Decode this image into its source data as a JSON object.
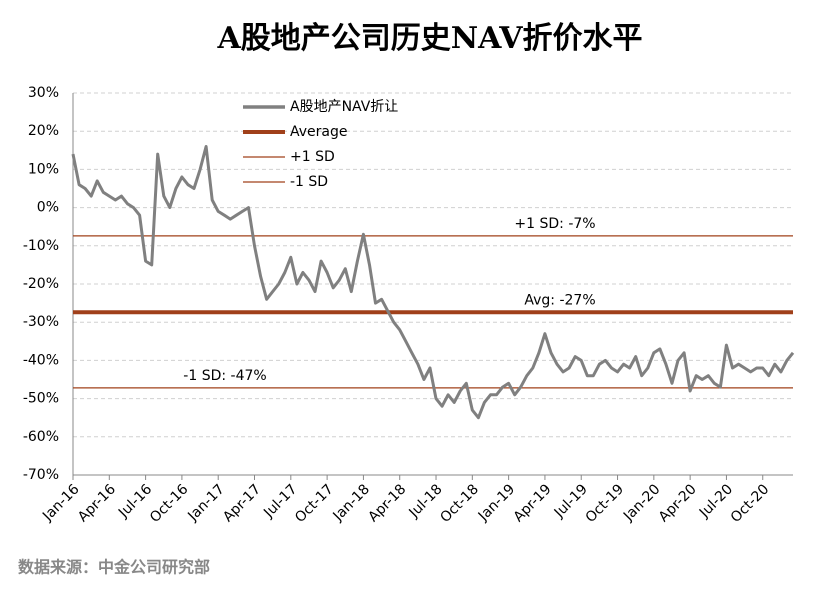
{
  "chart_data": {
    "type": "line",
    "title": "A股地产公司历史NAV折价水平",
    "source": "数据来源：中金公司研究部",
    "categories": [
      "Jan-16",
      null,
      null,
      null,
      null,
      null,
      "Apr-16",
      null,
      null,
      null,
      null,
      null,
      "Jul-16",
      null,
      null,
      null,
      null,
      null,
      "Oct-16",
      null,
      null,
      null,
      null,
      null,
      "Jan-17",
      null,
      null,
      null,
      null,
      null,
      "Apr-17",
      null,
      null,
      null,
      null,
      null,
      "Jul-17",
      null,
      null,
      null,
      null,
      null,
      "Oct-17",
      null,
      null,
      null,
      null,
      null,
      "Jan-18",
      null,
      null,
      null,
      null,
      null,
      "Apr-18",
      null,
      null,
      null,
      null,
      null,
      "Jul-18",
      null,
      null,
      null,
      null,
      null,
      "Oct-18",
      null,
      null,
      null,
      null,
      null,
      "Jan-19",
      null,
      null,
      null,
      null,
      null,
      "Apr-19",
      null,
      null,
      null,
      null,
      null,
      "Jul-19",
      null,
      null,
      null,
      null,
      null,
      "Oct-19",
      null,
      null,
      null,
      null,
      null,
      "Jan-20",
      null,
      null,
      null,
      null,
      null,
      "Apr-20",
      null,
      null,
      null,
      null,
      null,
      "Jul-20",
      null,
      null,
      null,
      null,
      null,
      "Oct-20",
      null,
      null,
      null,
      null,
      null
    ],
    "series": [
      {
        "name": "A股地产NAV折让",
        "color": "#808080",
        "values": [
          14,
          6,
          5,
          3,
          7,
          4,
          3,
          2,
          3,
          1,
          0,
          -2,
          -14,
          -15,
          14,
          3,
          0,
          5,
          8,
          6,
          5,
          10,
          16,
          2,
          -1,
          -2,
          -3,
          -2,
          -1,
          0,
          -10,
          -18,
          -24,
          -22,
          -20,
          -17,
          -13,
          -20,
          -17,
          -19,
          -22,
          -14,
          -17,
          -21,
          -19,
          -16,
          -22,
          -14,
          -7,
          -15,
          -25,
          -24,
          -27,
          -30,
          -32,
          -35,
          -38,
          -41,
          -45,
          -42,
          -50,
          -52,
          -49,
          -51,
          -48,
          -46,
          -53,
          -55,
          -51,
          -49,
          -49,
          -47,
          -46,
          -49,
          -47,
          -44,
          -42,
          -38,
          -33,
          -38,
          -41,
          -43,
          -42,
          -39,
          -40,
          -44,
          -44,
          -41,
          -40,
          -42,
          -43,
          -41,
          -42,
          -39,
          -44,
          -42,
          -38,
          -37,
          -41,
          -46,
          -40,
          -38,
          -48,
          -44,
          -45,
          -44,
          -46,
          -47,
          -36,
          -42,
          -41,
          -42,
          -43,
          -42,
          -42,
          -44,
          -41,
          -43,
          -40,
          -38
        ]
      }
    ],
    "reference_lines": [
      {
        "name": "Average",
        "value": -27.4,
        "label": "Avg: -27%",
        "color": "#a0401a",
        "width": 4
      },
      {
        "name": "+1 SD",
        "value": -7.4,
        "label": "+1 SD: -7%",
        "color": "#a0401a",
        "width": 1.2
      },
      {
        "name": "-1 SD",
        "value": -47.2,
        "label": "-1 SD: -47%",
        "color": "#a0401a",
        "width": 1.2
      }
    ],
    "ylim": [
      -70,
      30
    ],
    "yticks": [
      {
        "value": -70,
        "label": "-70%"
      },
      {
        "value": -60,
        "label": "-60%"
      },
      {
        "value": -50,
        "label": "-50%"
      },
      {
        "value": -40,
        "label": "-40%"
      },
      {
        "value": -30,
        "label": "-30%"
      },
      {
        "value": -20,
        "label": "-20%"
      },
      {
        "value": -10,
        "label": "-10%"
      },
      {
        "value": 0,
        "label": "0%"
      },
      {
        "value": 10,
        "label": "10%"
      },
      {
        "value": 20,
        "label": "20%"
      },
      {
        "value": 30,
        "label": "30%"
      }
    ],
    "grid": true
  }
}
